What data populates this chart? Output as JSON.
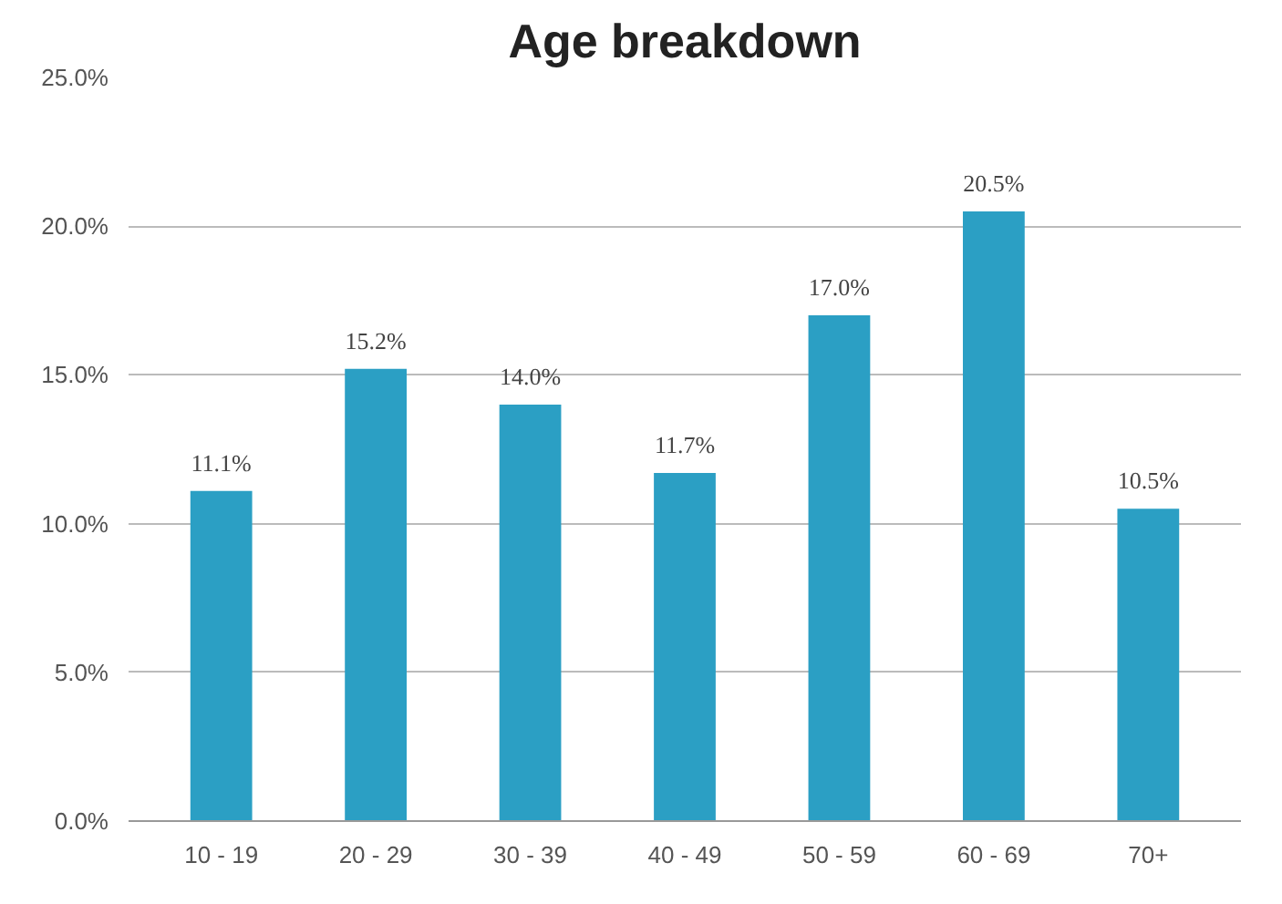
{
  "chart_data": {
    "type": "bar",
    "title": "Age breakdown",
    "categories": [
      "10 - 19",
      "20 - 29",
      "30 - 39",
      "40 - 49",
      "50 - 59",
      "60 - 69",
      "70+"
    ],
    "values": [
      11.1,
      15.2,
      14.0,
      11.7,
      17.0,
      20.5,
      10.5
    ],
    "value_labels": [
      "11.1%",
      "15.2%",
      "14.0%",
      "11.7%",
      "17.0%",
      "20.5%",
      "10.5%"
    ],
    "color": "#2b9fc4",
    "ylim": [
      0,
      25
    ],
    "yticks": [
      {
        "value": 0,
        "label": "0.0%"
      },
      {
        "value": 5,
        "label": "5.0%"
      },
      {
        "value": 10,
        "label": "10.0%"
      },
      {
        "value": 15,
        "label": "15.0%"
      },
      {
        "value": 20,
        "label": "20.0%"
      },
      {
        "value": 25,
        "label": "25.0%"
      }
    ],
    "grid": "y"
  }
}
